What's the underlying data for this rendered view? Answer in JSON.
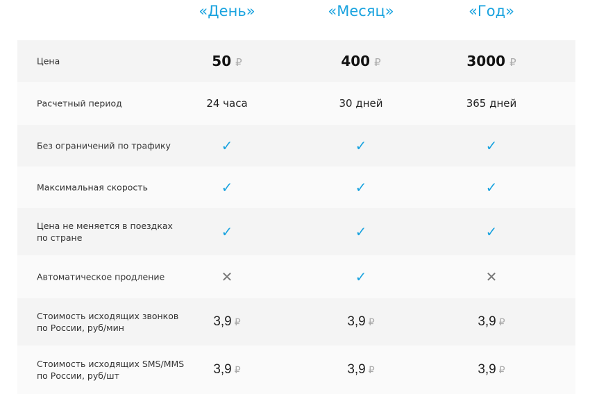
{
  "plans": [
    "«День»",
    "«Месяц»",
    "«Год»"
  ],
  "currency": "₽",
  "colors": {
    "accent": "#1aa3df",
    "cross": "#777777"
  },
  "rows": [
    {
      "label": "Цена",
      "type": "price",
      "values": [
        "50",
        "400",
        "3000"
      ]
    },
    {
      "label": "Расчетный период",
      "type": "text",
      "values": [
        "24 часа",
        "30 дней",
        "365 дней"
      ]
    },
    {
      "label": "Без ограничений по трафику",
      "type": "icon",
      "values": [
        "check-icon",
        "check-icon",
        "check-icon"
      ]
    },
    {
      "label": "Максимальная скорость",
      "type": "icon",
      "values": [
        "check-icon",
        "check-icon",
        "check-icon"
      ]
    },
    {
      "label": "Цена не меняется в поездках\nпо стране",
      "type": "icon",
      "values": [
        "check-icon",
        "check-icon",
        "check-icon"
      ]
    },
    {
      "label": "Автоматическое продление",
      "type": "icon",
      "values": [
        "cross-icon",
        "check-icon",
        "cross-icon"
      ]
    },
    {
      "label": "Стоимость исходящих звонков\nпо России, руб/мин",
      "type": "num",
      "values": [
        "3,9",
        "3,9",
        "3,9"
      ]
    },
    {
      "label": "Стоимость исходящих SMS/MMS\nпо России, руб/шт",
      "type": "num",
      "values": [
        "3,9",
        "3,9",
        "3,9"
      ]
    }
  ]
}
